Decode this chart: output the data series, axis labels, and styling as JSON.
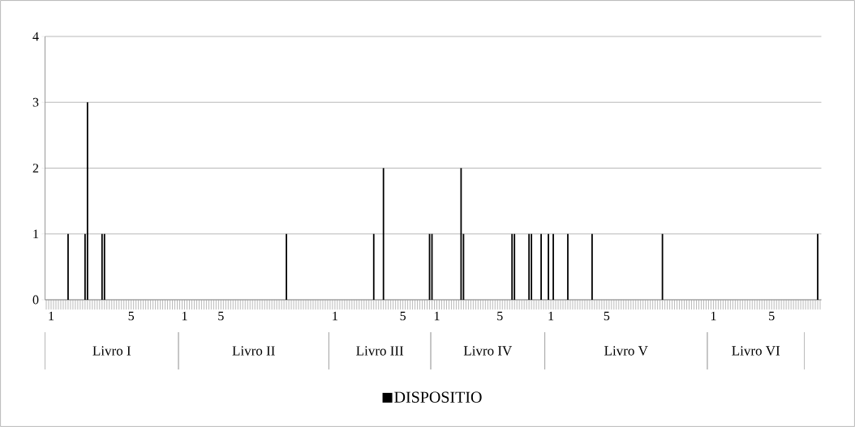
{
  "chart_data": {
    "type": "bar",
    "categories": [
      null,
      null,
      "1",
      null,
      null,
      null,
      null,
      null,
      null,
      null,
      null,
      null,
      null,
      null,
      null,
      null,
      null,
      null,
      null,
      null,
      null,
      null,
      null,
      null,
      null,
      null,
      null,
      null,
      null,
      null,
      null,
      null,
      null,
      null,
      null,
      "5",
      null,
      null,
      null,
      null,
      null,
      null,
      null,
      null,
      null,
      null,
      null,
      null,
      null,
      null,
      null,
      null,
      null,
      null,
      null,
      null,
      null,
      "1",
      null,
      null,
      null,
      null,
      null,
      null,
      null,
      null,
      null,
      null,
      null,
      null,
      null,
      null,
      "5",
      null,
      null,
      null,
      null,
      null,
      null,
      null,
      null,
      null,
      null,
      null,
      null,
      null,
      null,
      null,
      null,
      null,
      null,
      null,
      null,
      null,
      null,
      null,
      null,
      null,
      null,
      null,
      null,
      null,
      null,
      null,
      null,
      null,
      null,
      null,
      null,
      null,
      null,
      null,
      null,
      null,
      null,
      null,
      null,
      null,
      null,
      "1",
      null,
      null,
      null,
      null,
      null,
      null,
      null,
      null,
      null,
      null,
      null,
      null,
      null,
      null,
      null,
      null,
      null,
      null,
      null,
      null,
      null,
      null,
      null,
      null,
      null,
      null,
      null,
      "5",
      null,
      null,
      null,
      null,
      null,
      null,
      null,
      null,
      null,
      null,
      null,
      null,
      null,
      "1",
      null,
      null,
      null,
      null,
      null,
      null,
      null,
      null,
      null,
      null,
      null,
      null,
      null,
      null,
      null,
      null,
      null,
      null,
      null,
      null,
      null,
      null,
      null,
      null,
      null,
      "5",
      null,
      null,
      null,
      null,
      null,
      null,
      null,
      null,
      null,
      null,
      null,
      null,
      null,
      null,
      null,
      null,
      null,
      null,
      null,
      null,
      "1",
      null,
      null,
      null,
      null,
      null,
      null,
      null,
      null,
      null,
      null,
      null,
      null,
      null,
      null,
      null,
      null,
      null,
      null,
      null,
      null,
      null,
      null,
      "5",
      null,
      null,
      null,
      null,
      null,
      null,
      null,
      null,
      null,
      null,
      null,
      null,
      null,
      null,
      null,
      null,
      null,
      null,
      null,
      null,
      null,
      null,
      null,
      null,
      null,
      null,
      null,
      null,
      null,
      null,
      null,
      null,
      null,
      null,
      null,
      null,
      null,
      null,
      null,
      null,
      null,
      null,
      null,
      "1",
      null,
      null,
      null,
      null,
      null,
      null,
      null,
      null,
      null,
      null,
      null,
      null,
      null,
      null,
      null,
      null,
      null,
      null,
      null,
      null,
      null,
      null,
      null,
      "5",
      null,
      null,
      null,
      null,
      null,
      null,
      null,
      null,
      null,
      null,
      null,
      null,
      null,
      null,
      null,
      null,
      null,
      null,
      null,
      null
    ],
    "series": [
      {
        "name": "DISPOSITIO",
        "color": "#000000",
        "values": [
          null,
          null,
          null,
          null,
          null,
          null,
          null,
          null,
          null,
          1,
          null,
          null,
          null,
          null,
          null,
          null,
          1,
          3,
          null,
          null,
          null,
          null,
          null,
          1,
          1,
          null,
          null,
          null,
          null,
          null,
          null,
          null,
          null,
          null,
          null,
          null,
          null,
          null,
          null,
          null,
          null,
          null,
          null,
          null,
          null,
          null,
          null,
          null,
          null,
          null,
          null,
          null,
          null,
          null,
          null,
          null,
          null,
          null,
          null,
          null,
          null,
          null,
          null,
          null,
          null,
          null,
          null,
          null,
          null,
          null,
          null,
          null,
          null,
          null,
          null,
          null,
          null,
          null,
          null,
          null,
          null,
          null,
          null,
          null,
          null,
          null,
          null,
          null,
          null,
          null,
          null,
          null,
          null,
          null,
          null,
          null,
          null,
          null,
          null,
          1,
          null,
          null,
          null,
          null,
          null,
          null,
          null,
          null,
          null,
          null,
          null,
          null,
          null,
          null,
          null,
          null,
          null,
          null,
          null,
          null,
          null,
          null,
          null,
          null,
          null,
          null,
          null,
          null,
          null,
          null,
          null,
          null,
          null,
          null,
          null,
          1,
          null,
          null,
          null,
          2,
          null,
          null,
          null,
          null,
          null,
          null,
          null,
          null,
          null,
          null,
          null,
          null,
          null,
          null,
          null,
          null,
          null,
          null,
          1,
          1,
          null,
          null,
          null,
          null,
          null,
          null,
          null,
          null,
          null,
          null,
          null,
          2,
          1,
          null,
          null,
          null,
          null,
          null,
          null,
          null,
          null,
          null,
          null,
          null,
          null,
          null,
          null,
          null,
          null,
          null,
          null,
          null,
          1,
          1,
          null,
          null,
          null,
          null,
          null,
          1,
          1,
          null,
          null,
          null,
          1,
          null,
          null,
          1,
          null,
          1,
          null,
          null,
          null,
          null,
          null,
          1,
          null,
          null,
          null,
          null,
          null,
          null,
          null,
          null,
          null,
          1,
          null,
          null,
          null,
          null,
          null,
          null,
          null,
          null,
          null,
          null,
          null,
          null,
          null,
          null,
          null,
          null,
          null,
          null,
          null,
          null,
          null,
          null,
          null,
          null,
          null,
          null,
          null,
          null,
          1,
          null,
          null,
          null,
          null,
          null,
          null,
          null,
          null,
          null,
          null,
          null,
          null,
          null,
          null,
          null,
          null,
          null,
          null,
          null,
          null,
          null,
          null,
          null,
          null,
          null,
          null,
          null,
          null,
          null,
          null,
          null,
          null,
          null,
          null,
          null,
          null,
          null,
          null,
          null,
          null,
          null,
          null,
          null,
          null,
          null,
          null,
          null,
          null,
          null,
          null,
          null,
          null,
          null,
          null,
          null,
          null,
          null,
          null,
          null,
          null,
          null,
          null,
          null,
          1,
          null
        ]
      }
    ],
    "ylim": [
      0,
      4
    ],
    "yticks": [
      0,
      1,
      2,
      3,
      4
    ],
    "grid": "y",
    "legend": "bottom",
    "annotations": [
      "Livro I",
      "Livro II",
      "Livro III",
      "Livro IV",
      "Livro V",
      "Livro VI"
    ]
  }
}
